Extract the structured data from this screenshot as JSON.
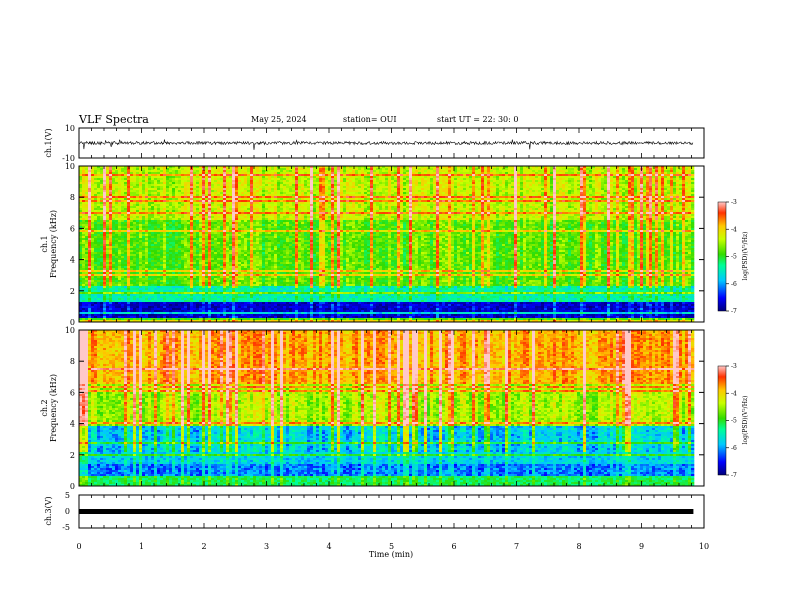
{
  "header": {
    "title": "VLF Spectra",
    "date": "May 25, 2024",
    "station": "station= OUI",
    "start": "start  UT  =   22: 30: 0"
  },
  "chart_data": [
    {
      "type": "line",
      "panel": "ch1-waveform",
      "ylabel": "ch.1(V)",
      "ylim": [
        -10,
        10
      ],
      "y_ticks": [
        "10",
        "-10"
      ],
      "baseline": 0,
      "description_values": {
        "typical_amplitude": 1,
        "spike_min": -5
      }
    },
    {
      "type": "heatmap",
      "panel": "ch1-spectrogram",
      "ylabel": "ch.1\nFrequency  (kHz)",
      "ylabel_lines": [
        "ch.1",
        "Frequency  (kHz)"
      ],
      "ylim": [
        0,
        10
      ],
      "y_ticks": [
        "0",
        "2",
        "4",
        "6",
        "8",
        "10"
      ],
      "colorbar": {
        "label": "log(PSD)(V²/Hz)",
        "range": [
          -7,
          -3
        ],
        "ticks": [
          "-3",
          "-4",
          "-5",
          "-6",
          "-7"
        ]
      },
      "bands": [
        {
          "f_from": 0,
          "f_to": 0.3,
          "level": -5
        },
        {
          "f_from": 0.3,
          "f_to": 1.3,
          "level": -6.7
        },
        {
          "f_from": 1.3,
          "f_to": 2.3,
          "level": -5.6
        },
        {
          "f_from": 2.3,
          "f_to": 6.5,
          "level": -4.9
        },
        {
          "f_from": 6.5,
          "f_to": 10,
          "level": -4.5
        }
      ]
    },
    {
      "type": "heatmap",
      "panel": "ch2-spectrogram",
      "ylabel": "ch.2\nFrequency  (kHz)",
      "ylabel_lines": [
        "ch.2",
        "Frequency  (kHz)"
      ],
      "ylim": [
        0,
        10
      ],
      "y_ticks": [
        "0",
        "2",
        "4",
        "6",
        "8",
        "10"
      ],
      "colorbar": {
        "label": "log(PSD)(V²/Hz)",
        "range": [
          -7,
          -3
        ],
        "ticks": [
          "-3",
          "-4",
          "-5",
          "-6",
          "-7"
        ]
      },
      "bands": [
        {
          "f_from": 0,
          "f_to": 0.6,
          "level": -5.3
        },
        {
          "f_from": 0.6,
          "f_to": 1.4,
          "level": -6.2
        },
        {
          "f_from": 1.4,
          "f_to": 3.8,
          "level": -5.9
        },
        {
          "f_from": 3.8,
          "f_to": 6.5,
          "level": -4.6
        },
        {
          "f_from": 6.5,
          "f_to": 10,
          "level": -3.9
        }
      ]
    },
    {
      "type": "line",
      "panel": "ch3-waveform",
      "ylabel": "ch.3(V)",
      "ylim": [
        -5,
        5
      ],
      "y_ticks": [
        "5",
        "0",
        "-5"
      ],
      "baseline": 0
    }
  ],
  "x_axis": {
    "xlabel": "Time  (min)",
    "xlim": [
      0,
      10
    ],
    "x_ticks": [
      "0",
      "1",
      "2",
      "3",
      "4",
      "5",
      "6",
      "7",
      "8",
      "9",
      "10"
    ],
    "data_end": 9.83
  },
  "colors": {
    "axis": "#000000",
    "colormap": [
      "#00007a",
      "#0000ff",
      "#00c8ff",
      "#00ff96",
      "#32dc00",
      "#c8ff00",
      "#ffc800",
      "#ff3200",
      "#ffc8c8"
    ]
  }
}
